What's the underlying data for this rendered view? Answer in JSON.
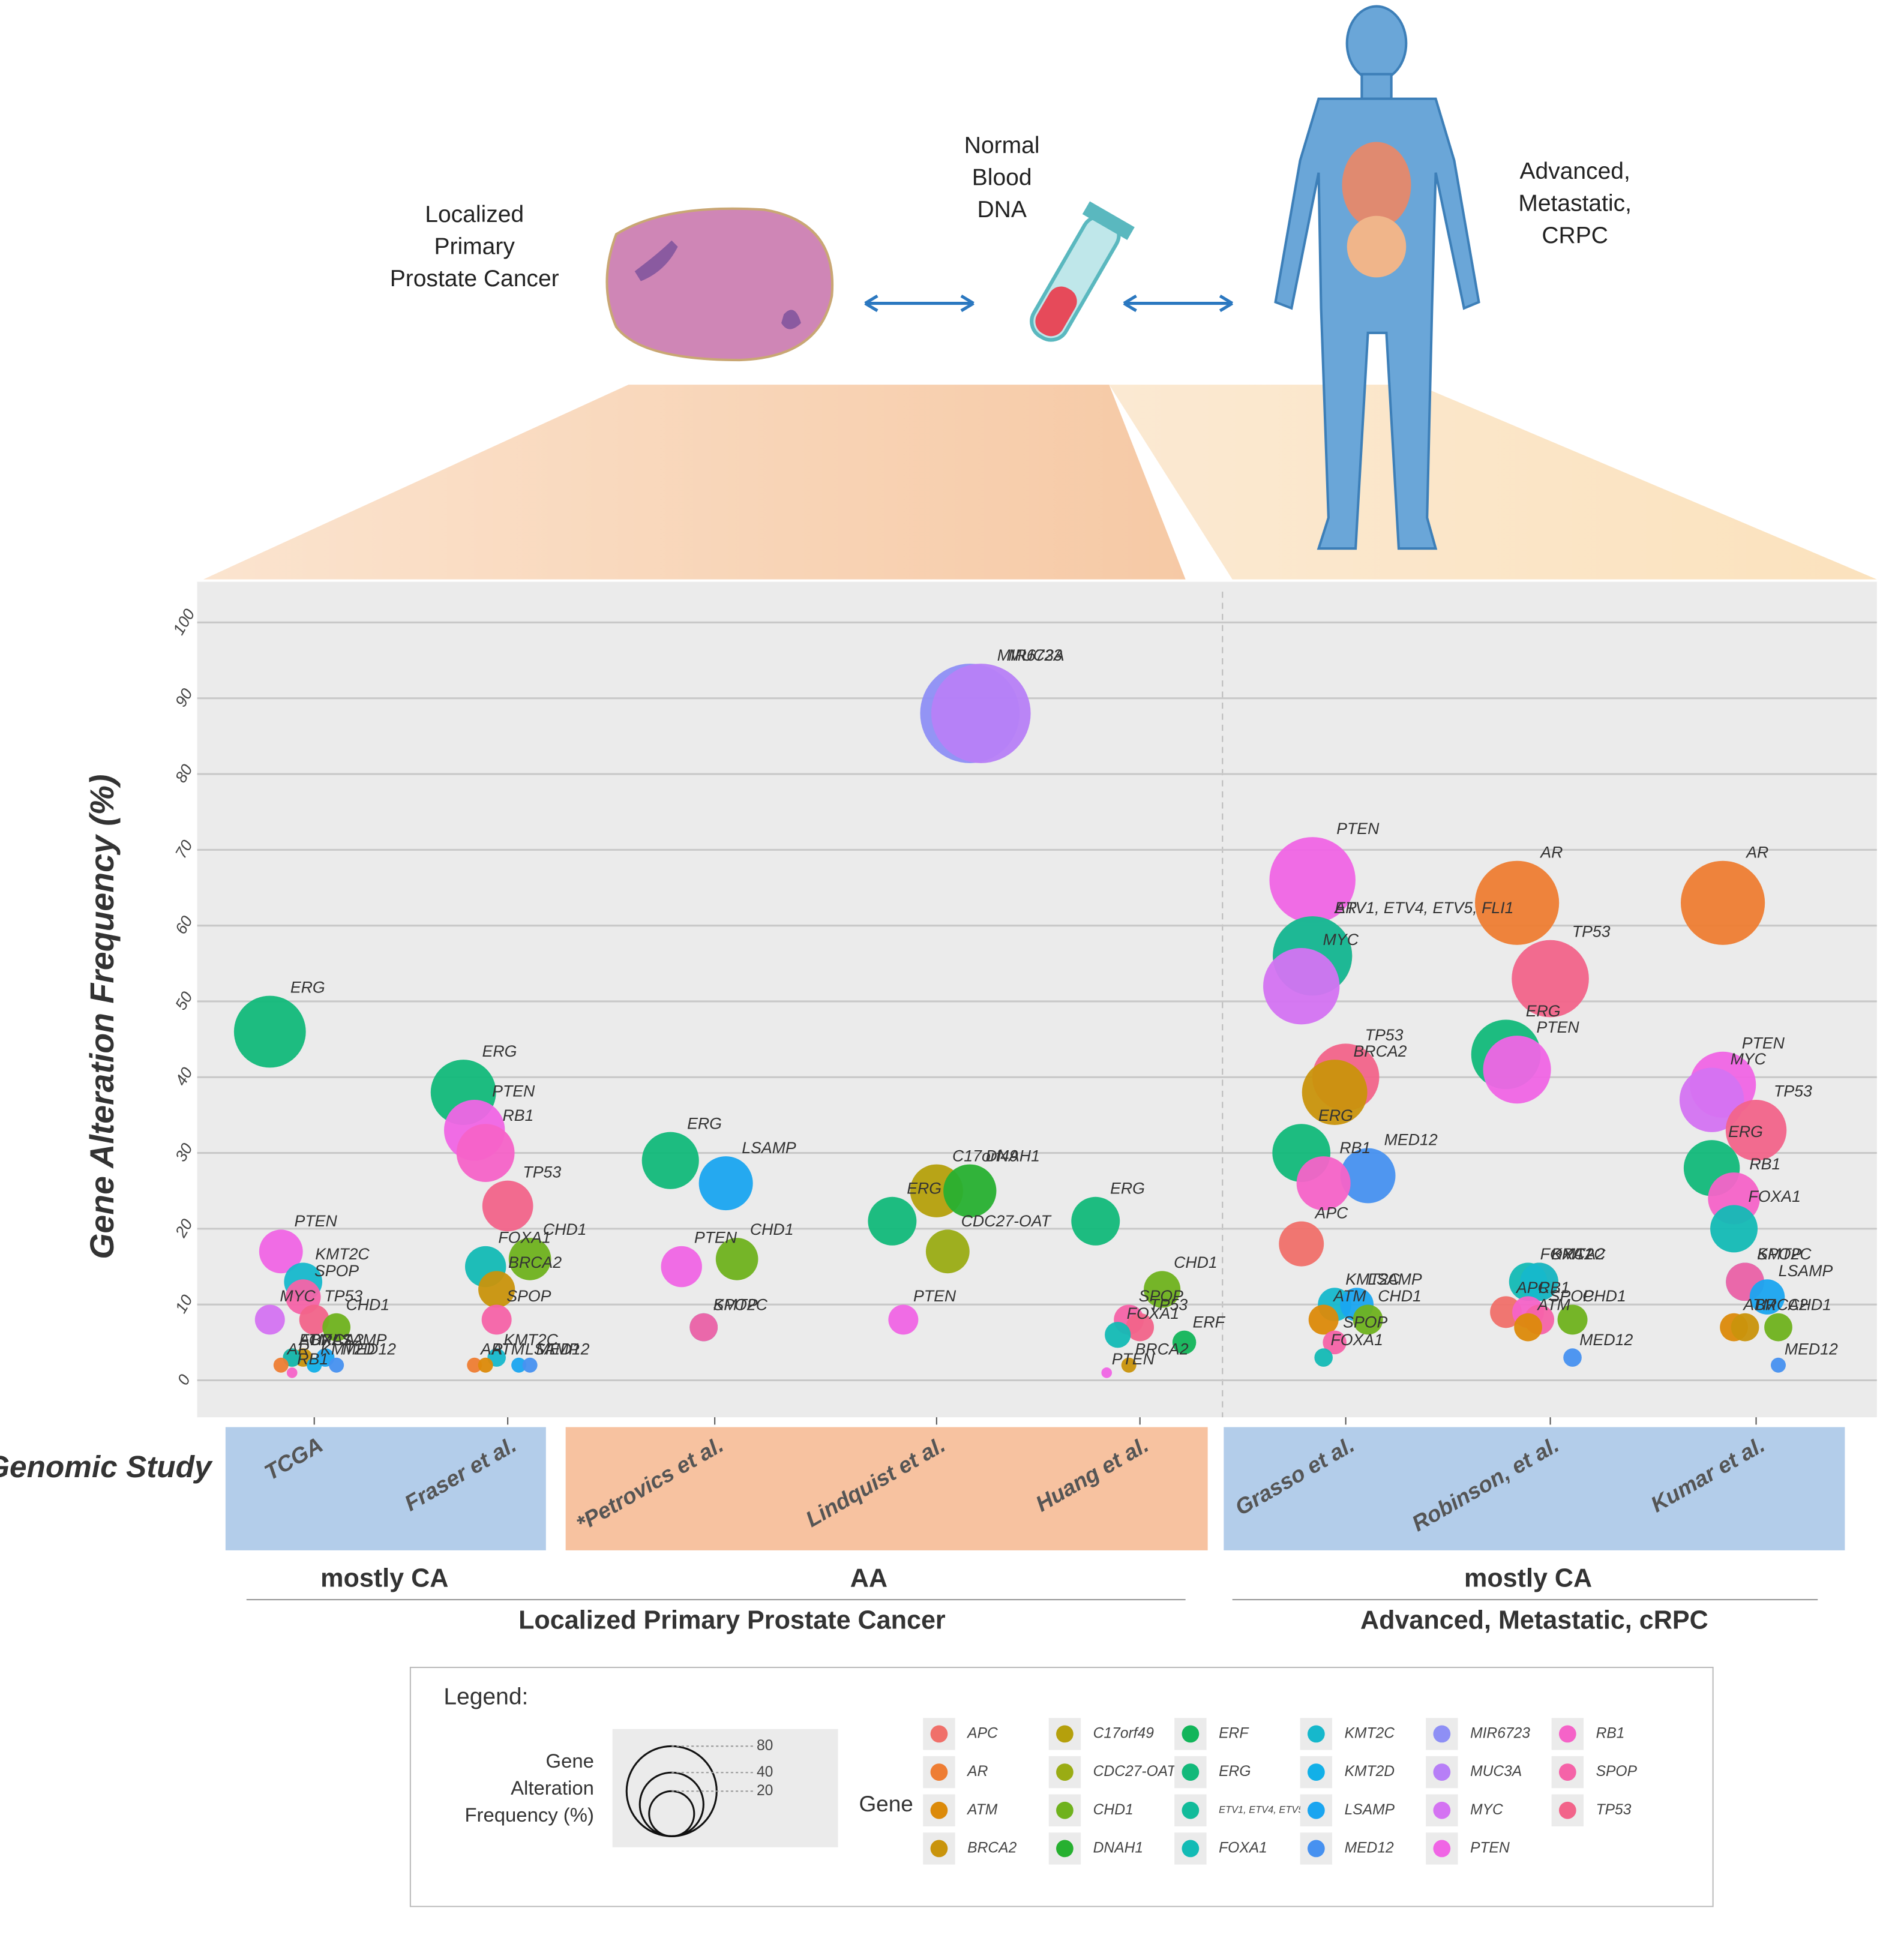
{
  "illustration": {
    "left": [
      "Localized",
      "Primary",
      "Prostate Cancer"
    ],
    "middle": [
      "Normal",
      "Blood",
      "DNA"
    ],
    "right": [
      "Advanced,",
      "Metastatic,",
      "CRPC"
    ]
  },
  "chart_data": {
    "type": "bubble",
    "y_label": "Gene Alteration Frequency (%)",
    "x_label": "Genomic Study",
    "categories": [
      "TCGA",
      "Fraser et al.",
      "*Petrovics et al.",
      "Lindquist et al.",
      "Huang et al.",
      "Grasso et al.",
      "Robinson, et al.",
      "Kumar et al."
    ],
    "ylim": [
      0,
      100
    ],
    "yticks": [
      0,
      10,
      20,
      30,
      40,
      50,
      60,
      70,
      80,
      90,
      100
    ],
    "grid": true,
    "ancestry_labels": [
      "mostly CA",
      "AA",
      "mostly CA"
    ],
    "stage_labels": [
      "Localized Primary Prostate Cancer",
      "Advanced, Metastatic, cRPC"
    ],
    "series": [
      {
        "name": "APC",
        "color": "#f0706a",
        "values": [
          null,
          null,
          null,
          null,
          null,
          18,
          9,
          null
        ]
      },
      {
        "name": "AR",
        "color": "#ee7d33",
        "values": [
          2,
          2,
          null,
          null,
          null,
          56,
          63,
          63
        ]
      },
      {
        "name": "ATM",
        "color": "#dc8a0a",
        "values": [
          3,
          2,
          null,
          null,
          null,
          8,
          7,
          7
        ]
      },
      {
        "name": "BRCA2",
        "color": "#c9940c",
        "values": [
          3,
          12,
          null,
          null,
          2,
          38,
          13,
          7
        ]
      },
      {
        "name": "C17orf49",
        "color": "#b5a00c",
        "values": [
          null,
          null,
          null,
          25,
          null,
          null,
          null,
          null
        ]
      },
      {
        "name": "CDC27-OAT",
        "color": "#9aac14",
        "values": [
          null,
          null,
          null,
          17,
          null,
          null,
          null,
          null
        ]
      },
      {
        "name": "CHD1",
        "color": "#6fb21d",
        "values": [
          7,
          16,
          16,
          null,
          12,
          8,
          8,
          7
        ]
      },
      {
        "name": "DNAH1",
        "color": "#27b030",
        "values": [
          null,
          null,
          null,
          25,
          null,
          null,
          null,
          null
        ]
      },
      {
        "name": "ERF",
        "color": "#12b55a",
        "values": [
          null,
          null,
          null,
          null,
          5,
          null,
          null,
          null
        ]
      },
      {
        "name": "ERG",
        "color": "#12b97a",
        "values": [
          46,
          38,
          29,
          21,
          21,
          30,
          43,
          28
        ]
      },
      {
        "name": "ETV1, ETV4, ETV5, FLI1",
        "color": "#12bb9a",
        "values": [
          null,
          null,
          null,
          null,
          null,
          56,
          null,
          null
        ]
      },
      {
        "name": "FOXA1",
        "color": "#13bbb5",
        "values": [
          3,
          15,
          null,
          null,
          6,
          3,
          13,
          20
        ]
      },
      {
        "name": "KMT2C",
        "color": "#16b8cc",
        "values": [
          13,
          3,
          7,
          null,
          null,
          10,
          13,
          13
        ]
      },
      {
        "name": "KMT2D",
        "color": "#12b0e8",
        "values": [
          2,
          null,
          null,
          null,
          null,
          null,
          null,
          null
        ]
      },
      {
        "name": "LSAMP",
        "color": "#1aa5f0",
        "values": [
          3,
          2,
          26,
          null,
          null,
          10,
          null,
          11
        ]
      },
      {
        "name": "MED12",
        "color": "#4791f0",
        "values": [
          2,
          2,
          null,
          null,
          null,
          27,
          3,
          2
        ]
      },
      {
        "name": "MIR6723",
        "color": "#8e8ff5",
        "values": [
          null,
          null,
          null,
          88,
          null,
          null,
          null,
          null
        ]
      },
      {
        "name": "MUC3A",
        "color": "#b77ff7",
        "values": [
          null,
          null,
          null,
          88,
          null,
          null,
          null,
          null
        ]
      },
      {
        "name": "MYC",
        "color": "#d473f2",
        "values": [
          8,
          null,
          null,
          null,
          null,
          52,
          null,
          37
        ]
      },
      {
        "name": "PTEN",
        "color": "#f065e5",
        "values": [
          17,
          33,
          15,
          8,
          1,
          66,
          41,
          39
        ]
      },
      {
        "name": "RB1",
        "color": "#f563c8",
        "values": [
          1,
          30,
          null,
          null,
          null,
          26,
          9,
          24
        ]
      },
      {
        "name": "SPOP",
        "color": "#f563a8",
        "values": [
          11,
          8,
          7,
          null,
          8,
          5,
          8,
          13
        ]
      },
      {
        "name": "TP53",
        "color": "#f2648a",
        "values": [
          8,
          23,
          null,
          null,
          7,
          40,
          53,
          33
        ]
      }
    ]
  },
  "legend": {
    "title": "Legend:",
    "size_title": [
      "Gene",
      "Alteration",
      "Frequency (%)"
    ],
    "size_values": [
      80,
      40,
      20
    ],
    "gene_title": "Gene"
  }
}
